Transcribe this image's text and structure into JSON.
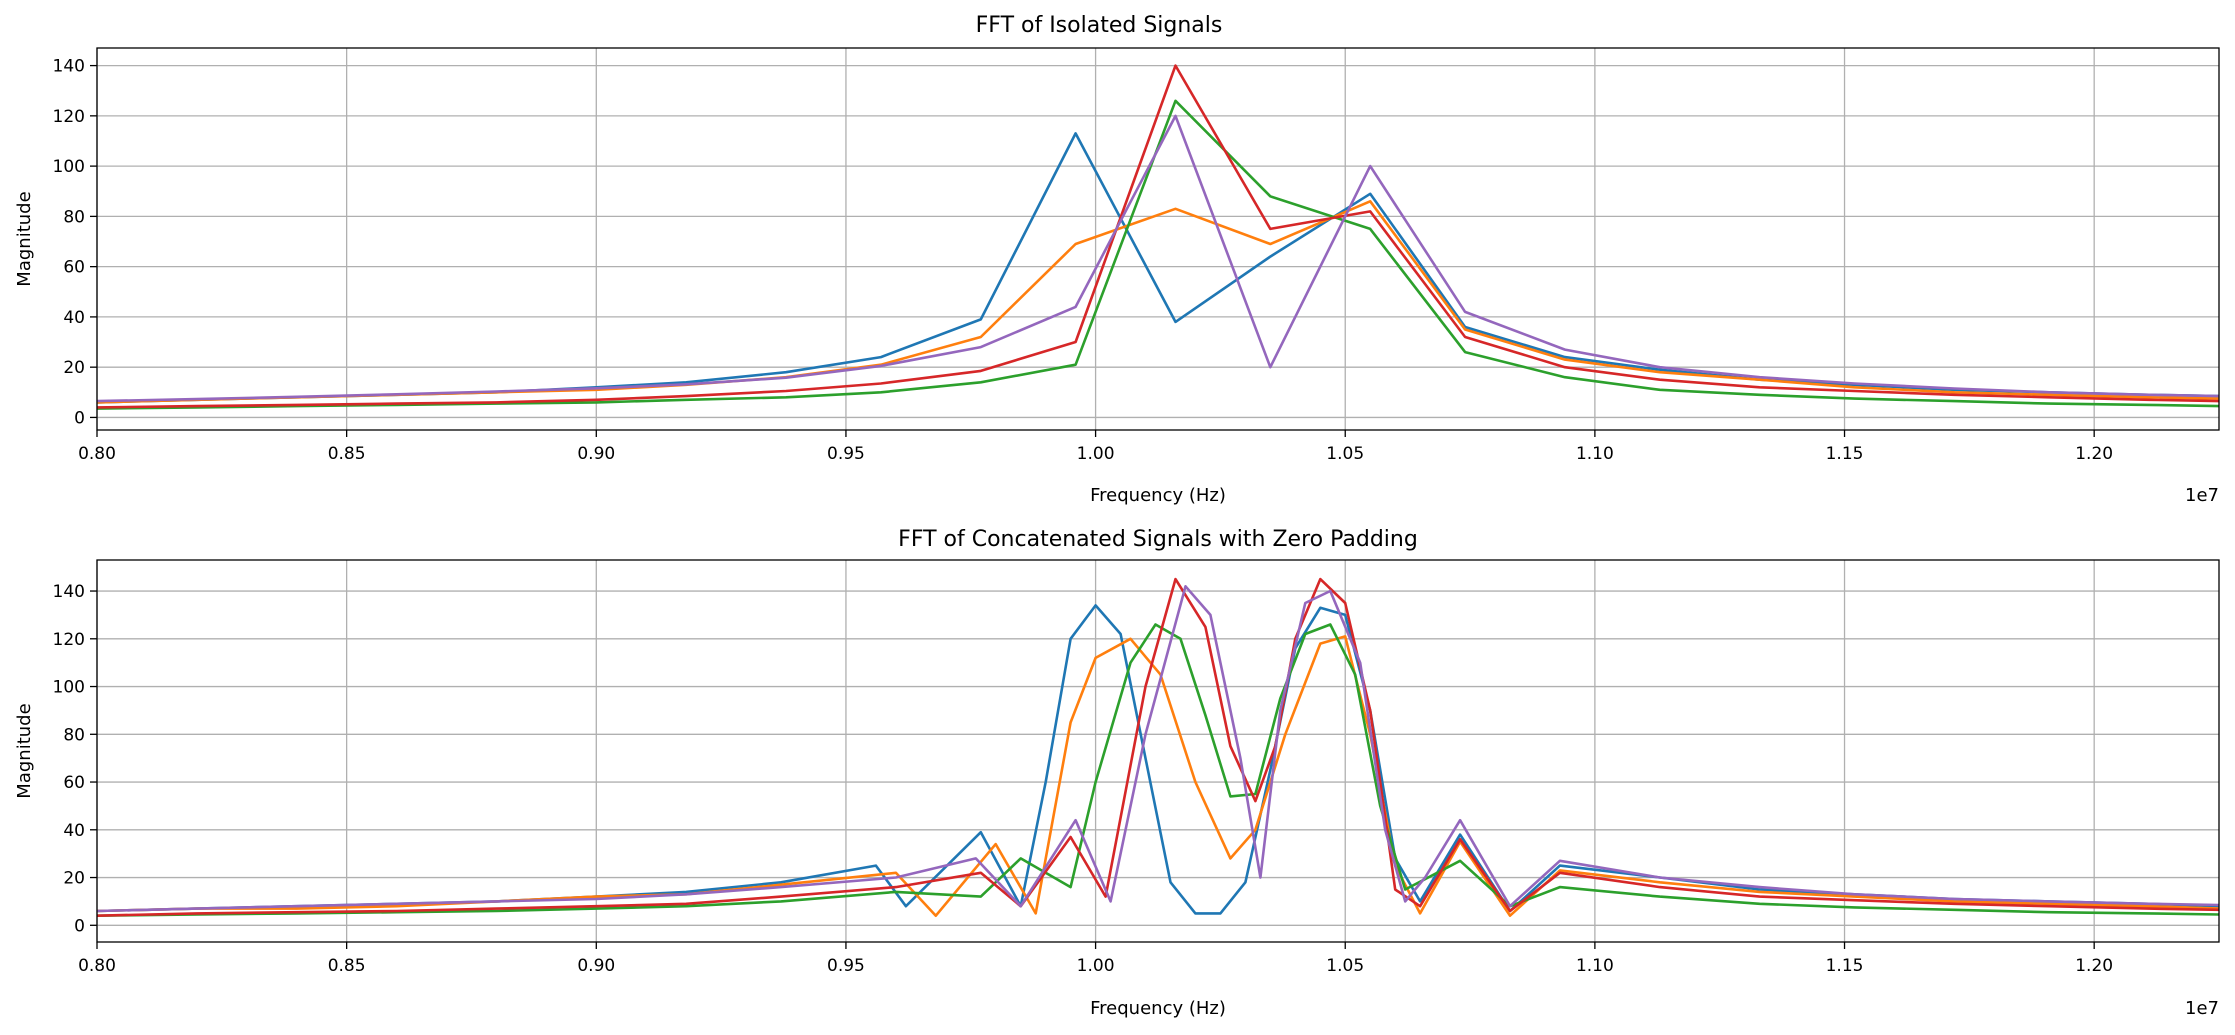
{
  "chart_data": [
    {
      "type": "line",
      "title": "FFT of Isolated Signals",
      "xlabel": "Frequency (Hz)",
      "ylabel": "Magnitude",
      "x_offset_label": "1e7",
      "xlim": [
        0.8,
        1.225
      ],
      "ylim": [
        -5,
        147
      ],
      "x_ticks": [
        "0.80",
        "0.85",
        "0.90",
        "0.95",
        "1.00",
        "1.05",
        "1.10",
        "1.15",
        "1.20"
      ],
      "y_ticks": [
        "0",
        "20",
        "40",
        "60",
        "80",
        "100",
        "120",
        "140"
      ],
      "grid": true,
      "series": [
        {
          "color": "#1f77b4",
          "x": [
            0.8,
            0.82,
            0.84,
            0.86,
            0.88,
            0.9,
            0.918,
            0.938,
            0.957,
            0.977,
            0.996,
            1.016,
            1.035,
            1.055,
            1.074,
            1.094,
            1.113,
            1.133,
            1.152,
            1.172,
            1.191,
            1.211,
            1.225
          ],
          "y": [
            6,
            7,
            8,
            9,
            10,
            12,
            14,
            18,
            24,
            39,
            113,
            38,
            64,
            89,
            36,
            24,
            19,
            15,
            13,
            11,
            10,
            9,
            8.5
          ]
        },
        {
          "color": "#ff7f0e",
          "x": [
            0.8,
            0.82,
            0.84,
            0.86,
            0.88,
            0.9,
            0.918,
            0.938,
            0.957,
            0.977,
            0.996,
            1.016,
            1.035,
            1.055,
            1.074,
            1.094,
            1.113,
            1.133,
            1.152,
            1.172,
            1.191,
            1.211,
            1.225
          ],
          "y": [
            6,
            7,
            8,
            9,
            10,
            11,
            13,
            16,
            21,
            32,
            69,
            83,
            69,
            86,
            35,
            23,
            18,
            15,
            12,
            10,
            9,
            8,
            7.5
          ]
        },
        {
          "color": "#2ca02c",
          "x": [
            0.8,
            0.82,
            0.84,
            0.86,
            0.88,
            0.9,
            0.918,
            0.938,
            0.957,
            0.977,
            0.996,
            1.016,
            1.035,
            1.055,
            1.074,
            1.094,
            1.113,
            1.133,
            1.152,
            1.172,
            1.191,
            1.211,
            1.225
          ],
          "y": [
            3.5,
            4,
            4.5,
            5,
            5.5,
            6,
            7,
            8,
            10,
            14,
            21,
            126,
            88,
            75,
            26,
            16,
            11,
            9,
            7.5,
            6.5,
            5.5,
            5,
            4.5
          ]
        },
        {
          "color": "#d62728",
          "x": [
            0.8,
            0.82,
            0.84,
            0.86,
            0.88,
            0.9,
            0.918,
            0.938,
            0.957,
            0.977,
            0.996,
            1.016,
            1.035,
            1.055,
            1.074,
            1.094,
            1.113,
            1.133,
            1.152,
            1.172,
            1.191,
            1.211,
            1.225
          ],
          "y": [
            4,
            4.5,
            5,
            5.5,
            6,
            7,
            8.5,
            10.5,
            13.5,
            18.5,
            30,
            140,
            75,
            82,
            32,
            20,
            15,
            12,
            10.5,
            9,
            8,
            7,
            6.5
          ]
        },
        {
          "color": "#9467bd",
          "x": [
            0.8,
            0.82,
            0.84,
            0.86,
            0.88,
            0.9,
            0.918,
            0.938,
            0.957,
            0.977,
            0.996,
            1.016,
            1.035,
            1.055,
            1.074,
            1.094,
            1.113,
            1.133,
            1.152,
            1.172,
            1.191,
            1.211,
            1.225
          ],
          "y": [
            6.5,
            7.3,
            8.2,
            9.2,
            10.3,
            11.6,
            13.2,
            15.8,
            20.5,
            28,
            44,
            120,
            20,
            100,
            42,
            27,
            20,
            16,
            13.5,
            11.5,
            10,
            9,
            8.5
          ]
        }
      ]
    },
    {
      "type": "line",
      "title": "FFT of Concatenated Signals with Zero Padding",
      "xlabel": "Frequency (Hz)",
      "ylabel": "Magnitude",
      "x_offset_label": "1e7",
      "xlim": [
        0.8,
        1.225
      ],
      "ylim": [
        -7,
        153
      ],
      "x_ticks": [
        "0.80",
        "0.85",
        "0.90",
        "0.95",
        "1.00",
        "1.05",
        "1.10",
        "1.15",
        "1.20"
      ],
      "y_ticks": [
        "0",
        "20",
        "40",
        "60",
        "80",
        "100",
        "120",
        "140"
      ],
      "grid": true,
      "series": [
        {
          "color": "#1f77b4",
          "x": [
            0.8,
            0.82,
            0.84,
            0.86,
            0.88,
            0.9,
            0.918,
            0.937,
            0.956,
            0.962,
            0.977,
            0.985,
            0.99,
            0.995,
            1.0,
            1.005,
            1.01,
            1.015,
            1.02,
            1.025,
            1.03,
            1.035,
            1.04,
            1.045,
            1.05,
            1.055,
            1.06,
            1.065,
            1.073,
            1.083,
            1.093,
            1.113,
            1.133,
            1.152,
            1.172,
            1.191,
            1.211,
            1.225
          ],
          "y": [
            6,
            7,
            8,
            9,
            10,
            12,
            14,
            18,
            25,
            8,
            39,
            8,
            60,
            120,
            134,
            122,
            70,
            18,
            5,
            5,
            18,
            65,
            116,
            133,
            130,
            90,
            28,
            10,
            38,
            6,
            25,
            20,
            15,
            13,
            11,
            10,
            9,
            8
          ]
        },
        {
          "color": "#ff7f0e",
          "x": [
            0.8,
            0.82,
            0.84,
            0.86,
            0.88,
            0.9,
            0.918,
            0.937,
            0.96,
            0.968,
            0.98,
            0.988,
            0.995,
            1.0,
            1.007,
            1.013,
            1.02,
            1.027,
            1.032,
            1.038,
            1.045,
            1.05,
            1.055,
            1.06,
            1.065,
            1.073,
            1.083,
            1.093,
            1.113,
            1.133,
            1.152,
            1.172,
            1.191,
            1.211,
            1.225
          ],
          "y": [
            6,
            7,
            7,
            8,
            10,
            12,
            13,
            17,
            22,
            4,
            34,
            5,
            85,
            112,
            120,
            105,
            60,
            28,
            40,
            80,
            118,
            121,
            80,
            25,
            5,
            35,
            4,
            23,
            18,
            14,
            12,
            10,
            9,
            8,
            7
          ]
        },
        {
          "color": "#2ca02c",
          "x": [
            0.8,
            0.82,
            0.84,
            0.86,
            0.88,
            0.9,
            0.918,
            0.937,
            0.96,
            0.977,
            0.985,
            0.995,
            1.0,
            1.007,
            1.012,
            1.017,
            1.022,
            1.027,
            1.032,
            1.037,
            1.042,
            1.047,
            1.052,
            1.057,
            1.062,
            1.073,
            1.083,
            1.093,
            1.113,
            1.133,
            1.152,
            1.172,
            1.191,
            1.211,
            1.225
          ],
          "y": [
            4,
            4.5,
            5,
            5.5,
            6,
            7,
            8,
            10,
            14,
            12,
            28,
            16,
            60,
            110,
            126,
            120,
            88,
            54,
            55,
            95,
            122,
            126,
            105,
            50,
            15,
            27,
            8,
            16,
            12,
            9,
            7.5,
            6.5,
            5.5,
            5,
            4.5
          ]
        },
        {
          "color": "#d62728",
          "x": [
            0.8,
            0.82,
            0.84,
            0.86,
            0.88,
            0.9,
            0.918,
            0.937,
            0.96,
            0.977,
            0.985,
            0.995,
            1.002,
            1.01,
            1.016,
            1.022,
            1.027,
            1.032,
            1.036,
            1.04,
            1.045,
            1.05,
            1.055,
            1.06,
            1.065,
            1.073,
            1.083,
            1.093,
            1.113,
            1.133,
            1.152,
            1.172,
            1.191,
            1.211,
            1.225
          ],
          "y": [
            4,
            5,
            5.5,
            6,
            7,
            8,
            9,
            12,
            16,
            22,
            8,
            37,
            12,
            100,
            145,
            125,
            75,
            52,
            75,
            120,
            145,
            135,
            90,
            15,
            8,
            36,
            6,
            22,
            16,
            12,
            10.5,
            9,
            8,
            7,
            6.5
          ]
        },
        {
          "color": "#9467bd",
          "x": [
            0.8,
            0.82,
            0.84,
            0.86,
            0.88,
            0.9,
            0.918,
            0.937,
            0.96,
            0.976,
            0.985,
            0.996,
            1.003,
            1.01,
            1.018,
            1.023,
            1.029,
            1.033,
            1.037,
            1.042,
            1.047,
            1.053,
            1.058,
            1.062,
            1.066,
            1.073,
            1.083,
            1.093,
            1.113,
            1.133,
            1.152,
            1.172,
            1.191,
            1.211,
            1.225
          ],
          "y": [
            6,
            7,
            8,
            9,
            10,
            11,
            13,
            16,
            20,
            28,
            8,
            44,
            10,
            80,
            142,
            130,
            70,
            20,
            90,
            135,
            140,
            110,
            40,
            10,
            20,
            44,
            8,
            27,
            20,
            16,
            13,
            11,
            10,
            9,
            8.5
          ]
        }
      ]
    }
  ]
}
